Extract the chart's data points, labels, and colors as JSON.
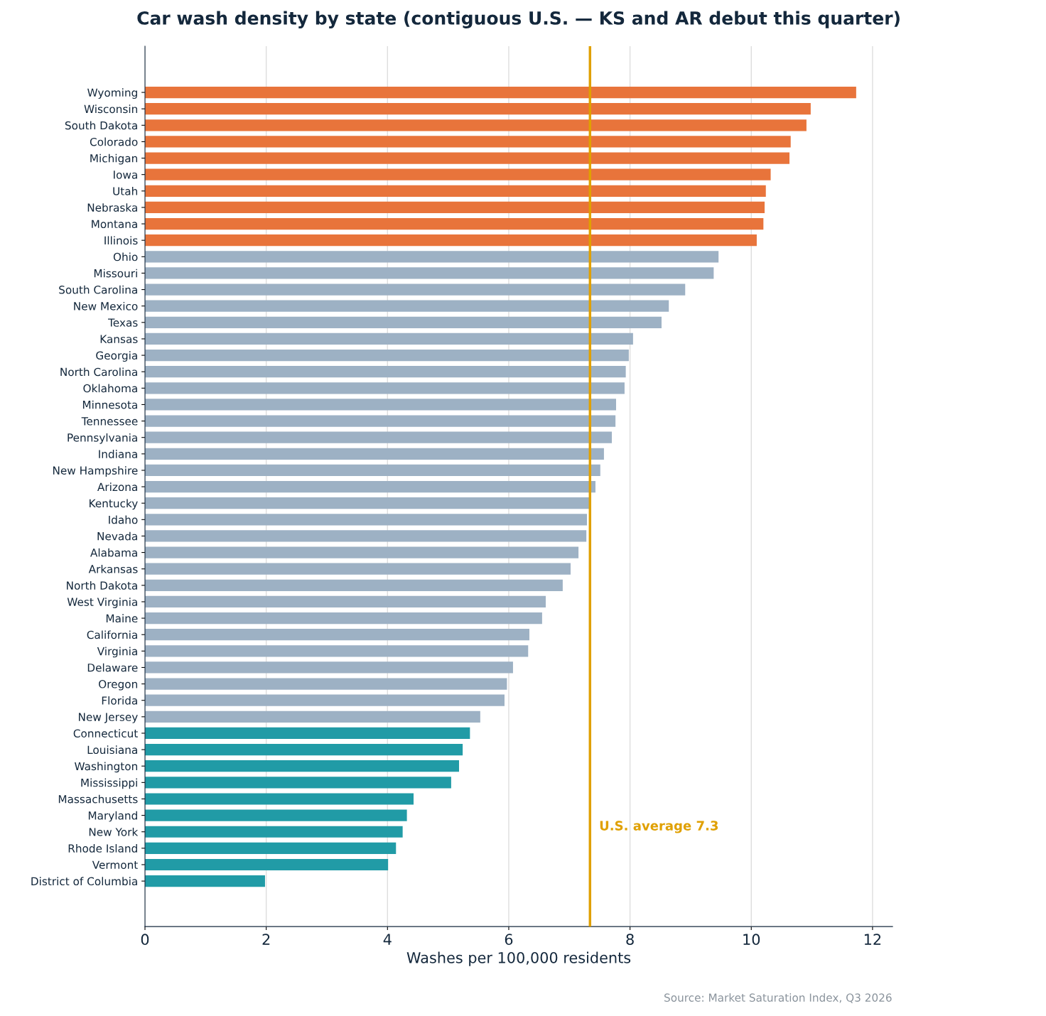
{
  "chart_data": {
    "type": "bar",
    "orientation": "horizontal",
    "title": "Car wash density by state (contiguous U.S. — KS and AR debut this quarter)",
    "xlabel": "Washes per 100,000 residents",
    "categories": [
      "Wyoming",
      "Wisconsin",
      "South Dakota",
      "Colorado",
      "Michigan",
      "Iowa",
      "Utah",
      "Nebraska",
      "Montana",
      "Illinois",
      "Ohio",
      "Missouri",
      "South Carolina",
      "New Mexico",
      "Texas",
      "Kansas",
      "Georgia",
      "North Carolina",
      "Oklahoma",
      "Minnesota",
      "Tennessee",
      "Pennsylvania",
      "Indiana",
      "New Hampshire",
      "Arizona",
      "Kentucky",
      "Idaho",
      "Nevada",
      "Alabama",
      "Arkansas",
      "North Dakota",
      "West Virginia",
      "Maine",
      "California",
      "Virginia",
      "Delaware",
      "Oregon",
      "Florida",
      "New Jersey",
      "Connecticut",
      "Louisiana",
      "Washington",
      "Mississippi",
      "Massachusetts",
      "Maryland",
      "New York",
      "Rhode Island",
      "Vermont",
      "District of Columbia"
    ],
    "values": [
      11.73,
      10.98,
      10.91,
      10.65,
      10.63,
      10.32,
      10.24,
      10.22,
      10.2,
      10.09,
      9.46,
      9.38,
      8.91,
      8.64,
      8.52,
      8.05,
      7.98,
      7.93,
      7.91,
      7.77,
      7.76,
      7.7,
      7.57,
      7.51,
      7.43,
      7.34,
      7.29,
      7.28,
      7.15,
      7.02,
      6.89,
      6.61,
      6.55,
      6.34,
      6.32,
      6.07,
      5.97,
      5.93,
      5.53,
      5.36,
      5.24,
      5.18,
      5.05,
      4.43,
      4.32,
      4.25,
      4.14,
      4.01,
      1.98
    ],
    "colors": [
      "#e8743b",
      "#e8743b",
      "#e8743b",
      "#e8743b",
      "#e8743b",
      "#e8743b",
      "#e8743b",
      "#e8743b",
      "#e8743b",
      "#e8743b",
      "#9db1c4",
      "#9db1c4",
      "#9db1c4",
      "#9db1c4",
      "#9db1c4",
      "#9db1c4",
      "#9db1c4",
      "#9db1c4",
      "#9db1c4",
      "#9db1c4",
      "#9db1c4",
      "#9db1c4",
      "#9db1c4",
      "#9db1c4",
      "#9db1c4",
      "#9db1c4",
      "#9db1c4",
      "#9db1c4",
      "#9db1c4",
      "#9db1c4",
      "#9db1c4",
      "#9db1c4",
      "#9db1c4",
      "#9db1c4",
      "#9db1c4",
      "#9db1c4",
      "#9db1c4",
      "#9db1c4",
      "#9db1c4",
      "#219ba6",
      "#219ba6",
      "#219ba6",
      "#219ba6",
      "#219ba6",
      "#219ba6",
      "#219ba6",
      "#219ba6",
      "#219ba6",
      "#219ba6"
    ],
    "xlim": [
      0,
      12.33
    ],
    "xticks": [
      0,
      2,
      4,
      6,
      8,
      10,
      12
    ],
    "grid": "x",
    "ref_lines": [
      {
        "axis": "x",
        "value": 7.34,
        "label": "U.S. average 7.3",
        "color": "#e0a000"
      }
    ],
    "annotations": [
      "Source: Market Saturation Index, Q3 2026"
    ]
  }
}
